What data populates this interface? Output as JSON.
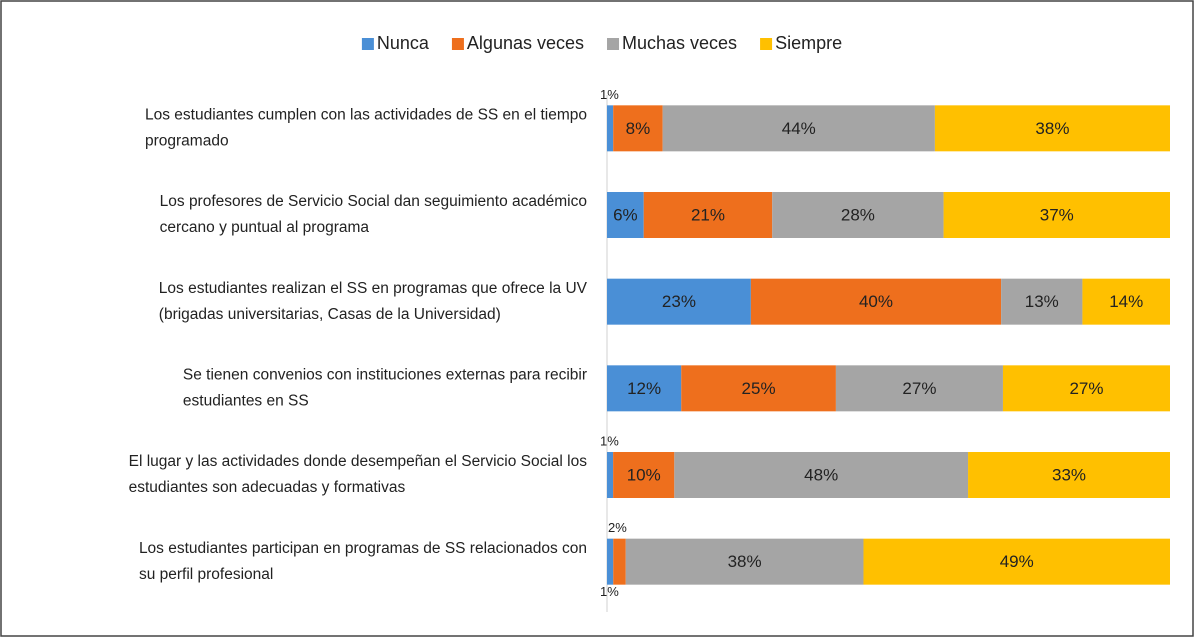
{
  "chart_data": {
    "type": "bar",
    "orientation": "horizontal",
    "stacking": "percent",
    "categories": [
      [
        "Los estudiantes cumplen con las actividades de SS en el tiempo",
        "programado"
      ],
      [
        "Los profesores de Servicio Social dan seguimiento académico",
        "cercano y puntual al programa"
      ],
      [
        "Los estudiantes realizan el SS en programas que ofrece la UV",
        "(brigadas universitarias, Casas de la Universidad)"
      ],
      [
        "Se tienen convenios con instituciones externas para recibir",
        "estudiantes en SS"
      ],
      [
        "El lugar y las actividades donde desempeñan el Servicio Social los",
        "estudiantes son adecuadas y formativas"
      ],
      [
        "Los estudiantes participan en programas de SS relacionados con",
        "su perfil profesional"
      ]
    ],
    "series": [
      {
        "name": "Nunca",
        "color": "#4a8fd6",
        "values": [
          1,
          6,
          23,
          12,
          1,
          1
        ],
        "value_labels": [
          "1%",
          "6%",
          "23%",
          "12%",
          "1%",
          "1%"
        ]
      },
      {
        "name": "Algunas veces",
        "color": "#ee6f1d",
        "values": [
          8,
          21,
          40,
          25,
          10,
          2
        ],
        "value_labels": [
          "8%",
          "21%",
          "40%",
          "25%",
          "10%",
          "2%"
        ]
      },
      {
        "name": "Muchas veces",
        "color": "#a5a5a5",
        "values": [
          44,
          28,
          13,
          27,
          48,
          38
        ],
        "value_labels": [
          "44%",
          "28%",
          "13%",
          "27%",
          "48%",
          "38%"
        ]
      },
      {
        "name": "Siempre",
        "color": "#ffc000",
        "values": [
          38,
          37,
          14,
          27,
          33,
          49
        ],
        "value_labels": [
          "38%",
          "37%",
          "14%",
          "27%",
          "33%",
          "49%"
        ]
      }
    ],
    "legend": "top"
  }
}
